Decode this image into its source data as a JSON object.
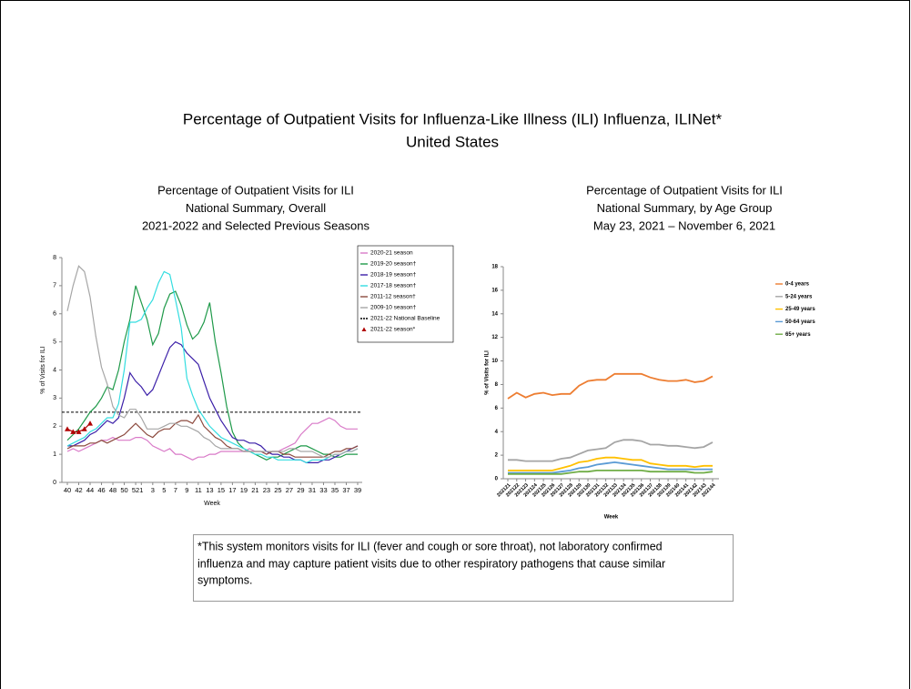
{
  "title": [
    "Percentage of Outpatient Visits for Influenza-Like Illness (ILI) Influenza, ILINet*",
    "United States"
  ],
  "footnote": [
    "*This system monitors visits for ILI (fever and cough or sore throat), not laboratory confirmed",
    "influenza and may capture patient visits due to other respiratory pathogens that cause similar",
    "symptoms."
  ],
  "chart_data": [
    {
      "type": "line",
      "title": [
        "Percentage of Outpatient Visits for ILI",
        "National Summary, Overall",
        "2021-2022 and Selected Previous Seasons"
      ],
      "x_label": "Week",
      "y_label": "% of Visits for ILI",
      "categories": [
        40,
        null,
        42,
        null,
        44,
        null,
        46,
        null,
        48,
        null,
        50,
        null,
        52,
        1,
        null,
        3,
        null,
        5,
        null,
        7,
        null,
        9,
        null,
        11,
        null,
        13,
        null,
        15,
        null,
        17,
        null,
        19,
        null,
        21,
        null,
        23,
        null,
        25,
        null,
        27,
        null,
        29,
        null,
        31,
        null,
        33,
        null,
        35,
        null,
        37,
        null,
        39
      ],
      "ylim": [
        0,
        8
      ],
      "yticks": [
        0,
        1,
        2,
        3,
        4,
        5,
        6,
        7,
        8
      ],
      "legend": "upper right",
      "series": [
        {
          "name": "2020-21 season",
          "color": "#d97ac8",
          "values": [
            1.1,
            1.2,
            1.1,
            1.2,
            1.3,
            1.4,
            1.5,
            1.5,
            1.6,
            1.5,
            1.5,
            1.5,
            1.6,
            1.6,
            1.5,
            1.3,
            1.2,
            1.1,
            1.2,
            1.0,
            1.0,
            0.9,
            0.8,
            0.9,
            0.9,
            1.0,
            1.0,
            1.1,
            1.1,
            1.1,
            1.1,
            1.1,
            1.2,
            1.1,
            1.1,
            1.0,
            1.1,
            1.1,
            1.2,
            1.3,
            1.4,
            1.7,
            1.9,
            2.1,
            2.1,
            2.2,
            2.3,
            2.2,
            2.0,
            1.9,
            1.9,
            1.9
          ]
        },
        {
          "name": "2019-20 season†",
          "color": "#1f9a4a",
          "values": [
            1.5,
            1.7,
            1.9,
            2.2,
            2.5,
            2.7,
            3.0,
            3.4,
            3.3,
            4.0,
            5.0,
            5.8,
            7.0,
            6.4,
            5.8,
            4.9,
            5.3,
            6.2,
            6.7,
            6.8,
            6.3,
            5.6,
            5.1,
            5.3,
            5.7,
            6.4,
            5.0,
            3.9,
            2.7,
            1.8,
            1.4,
            1.2,
            1.1,
            1.0,
            0.9,
            0.8,
            0.9,
            0.9,
            1.0,
            1.1,
            1.2,
            1.3,
            1.3,
            1.2,
            1.1,
            1.0,
            1.0,
            0.9,
            0.9,
            1.0,
            1.0,
            1.0
          ]
        },
        {
          "name": "2018-19 season†",
          "color": "#3b1fa8",
          "values": [
            1.3,
            1.3,
            1.4,
            1.5,
            1.7,
            1.8,
            2.0,
            2.2,
            2.1,
            2.3,
            3.0,
            3.9,
            3.6,
            3.4,
            3.1,
            3.3,
            3.8,
            4.3,
            4.8,
            5.0,
            4.9,
            4.6,
            4.4,
            4.2,
            3.6,
            3.0,
            2.6,
            2.2,
            1.9,
            1.6,
            1.5,
            1.5,
            1.4,
            1.4,
            1.3,
            1.1,
            1.0,
            1.0,
            0.9,
            0.9,
            0.8,
            0.8,
            0.7,
            0.7,
            0.7,
            0.8,
            0.8,
            0.9,
            1.0,
            1.1,
            1.2,
            1.3
          ]
        },
        {
          "name": "2017-18 season†",
          "color": "#33dde0",
          "values": [
            1.3,
            1.4,
            1.5,
            1.6,
            1.8,
            1.9,
            2.1,
            2.3,
            2.3,
            2.8,
            4.0,
            5.7,
            5.7,
            5.8,
            6.2,
            6.5,
            7.1,
            7.5,
            7.4,
            6.5,
            5.5,
            3.7,
            3.1,
            2.6,
            2.3,
            2.0,
            1.8,
            1.6,
            1.5,
            1.4,
            1.3,
            1.2,
            1.1,
            1.0,
            1.0,
            0.9,
            0.9,
            0.8,
            0.8,
            0.8,
            0.8,
            0.8,
            0.7,
            0.8,
            0.8,
            0.8,
            0.9,
            1.0,
            1.0,
            1.1,
            1.1,
            1.2
          ]
        },
        {
          "name": "2011-12 season†",
          "color": "#8c4a3e",
          "values": [
            1.2,
            1.3,
            1.3,
            1.3,
            1.4,
            1.4,
            1.5,
            1.4,
            1.5,
            1.6,
            1.7,
            1.9,
            2.1,
            1.9,
            1.7,
            1.6,
            1.8,
            1.9,
            1.9,
            2.1,
            2.2,
            2.2,
            2.1,
            2.4,
            2.0,
            1.8,
            1.6,
            1.5,
            1.3,
            1.2,
            1.2,
            1.1,
            1.1,
            1.1,
            1.1,
            1.0,
            1.1,
            1.1,
            1.0,
            1.0,
            0.9,
            0.9,
            0.9,
            0.9,
            0.9,
            0.9,
            1.0,
            1.1,
            1.1,
            1.2,
            1.2,
            1.3
          ]
        },
        {
          "name": "2009-10 season†",
          "color": "#a6a6a6",
          "values": [
            6.1,
            7.0,
            7.7,
            7.5,
            6.6,
            5.2,
            4.1,
            3.5,
            2.7,
            2.4,
            2.3,
            2.6,
            2.6,
            2.3,
            1.9,
            1.9,
            1.9,
            2.0,
            2.1,
            2.1,
            2.0,
            2.0,
            1.9,
            1.8,
            1.6,
            1.5,
            1.3,
            1.2,
            1.2,
            1.2,
            1.2,
            1.1,
            1.1,
            1.1,
            1.1,
            1.1,
            1.1,
            1.1,
            1.1,
            1.2,
            1.2,
            1.1,
            1.1,
            1.1,
            1.0,
            0.9,
            0.9,
            1.0,
            1.0,
            1.1,
            1.1,
            1.2
          ]
        },
        {
          "name": "2021-22 season*",
          "color": "#b00000",
          "marker": "triangle",
          "values": [
            1.9,
            1.8,
            1.8,
            1.9,
            2.1,
            null,
            null,
            null,
            null,
            null,
            null,
            null,
            null,
            null,
            null,
            null,
            null,
            null,
            null,
            null,
            null,
            null,
            null,
            null,
            null,
            null,
            null,
            null,
            null,
            null,
            null,
            null,
            null,
            null,
            null,
            null,
            null,
            null,
            null,
            null,
            null,
            null,
            null,
            null,
            null,
            null,
            null,
            null,
            null,
            null,
            null,
            null
          ]
        }
      ],
      "baseline": {
        "name": "2021-22 National Baseline",
        "value": 2.5,
        "color": "#000000"
      }
    },
    {
      "type": "line",
      "title": [
        "Percentage of Outpatient Visits for ILI",
        "National Summary, by Age Group",
        "May 23, 2021 – November 6, 2021"
      ],
      "x_label": "Week",
      "y_label": "% of Visits for ILI",
      "categories": [
        "202121",
        "202122",
        "202123",
        "202124",
        "202125",
        "202126",
        "202127",
        "202128",
        "202129",
        "202130",
        "202131",
        "202132",
        "202133",
        "202134",
        "202135",
        "202136",
        "202137",
        "202138",
        "202139",
        "202140",
        "202141",
        "202142",
        "202143",
        "202144"
      ],
      "ylim": [
        0,
        18
      ],
      "yticks": [
        0,
        2,
        4,
        6,
        8,
        10,
        12,
        14,
        16,
        18
      ],
      "legend": "upper right",
      "series": [
        {
          "name": "0-4 years",
          "color": "#ed7d31",
          "values": [
            6.8,
            7.3,
            6.9,
            7.2,
            7.3,
            7.1,
            7.2,
            7.2,
            7.9,
            8.3,
            8.4,
            8.4,
            8.9,
            8.9,
            8.9,
            8.9,
            8.6,
            8.4,
            8.3,
            8.3,
            8.4,
            8.2,
            8.3,
            8.7
          ]
        },
        {
          "name": "5-24 years",
          "color": "#a5a5a5",
          "values": [
            1.6,
            1.6,
            1.5,
            1.5,
            1.5,
            1.5,
            1.7,
            1.8,
            2.1,
            2.4,
            2.5,
            2.6,
            3.1,
            3.3,
            3.3,
            3.2,
            2.9,
            2.9,
            2.8,
            2.8,
            2.7,
            2.6,
            2.7,
            3.1
          ]
        },
        {
          "name": "25-49 years",
          "color": "#ffc000",
          "values": [
            0.7,
            0.7,
            0.7,
            0.7,
            0.7,
            0.7,
            0.9,
            1.1,
            1.4,
            1.5,
            1.7,
            1.8,
            1.8,
            1.7,
            1.6,
            1.6,
            1.3,
            1.2,
            1.1,
            1.1,
            1.1,
            1.0,
            1.1,
            1.1
          ]
        },
        {
          "name": "50-64 years",
          "color": "#5b9bd5",
          "values": [
            0.5,
            0.5,
            0.5,
            0.5,
            0.5,
            0.5,
            0.6,
            0.7,
            0.9,
            1.0,
            1.2,
            1.3,
            1.4,
            1.3,
            1.2,
            1.1,
            1.0,
            0.9,
            0.8,
            0.8,
            0.8,
            0.8,
            0.8,
            0.8
          ]
        },
        {
          "name": "65+ years",
          "color": "#70ad47",
          "values": [
            0.4,
            0.4,
            0.4,
            0.4,
            0.4,
            0.4,
            0.4,
            0.5,
            0.6,
            0.6,
            0.7,
            0.7,
            0.7,
            0.7,
            0.7,
            0.7,
            0.6,
            0.6,
            0.6,
            0.6,
            0.6,
            0.5,
            0.5,
            0.6
          ]
        }
      ]
    }
  ]
}
